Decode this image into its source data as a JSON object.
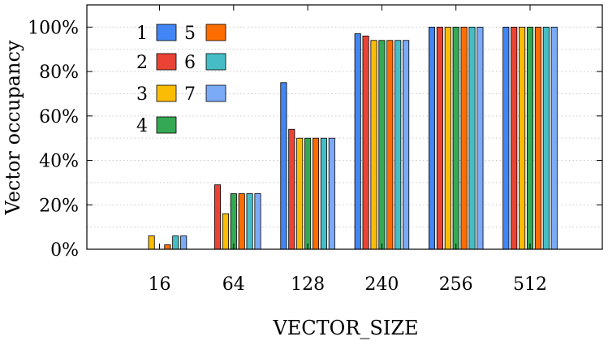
{
  "chart_data": {
    "type": "bar",
    "title": "",
    "xlabel": "VECTOR_SIZE",
    "ylabel": "Vector occupancy",
    "categories": [
      "16",
      "64",
      "128",
      "240",
      "256",
      "512"
    ],
    "ylim": [
      0,
      110
    ],
    "yticks": [
      0,
      20,
      40,
      60,
      80,
      100
    ],
    "ytick_labels": [
      "0%",
      "20%",
      "40%",
      "60%",
      "80%",
      "100%"
    ],
    "grid": "horizontal dotted",
    "legend_position": "top-left",
    "series": [
      {
        "name": "1",
        "color": "#4285f4",
        "values": [
          0,
          0,
          75,
          97,
          100,
          100
        ]
      },
      {
        "name": "2",
        "color": "#ea4335",
        "values": [
          0,
          29,
          54,
          96,
          100,
          100
        ]
      },
      {
        "name": "3",
        "color": "#fbbc04",
        "values": [
          6,
          16,
          50,
          94,
          100,
          100
        ]
      },
      {
        "name": "4",
        "color": "#34a853",
        "values": [
          0,
          25,
          50,
          94,
          100,
          100
        ]
      },
      {
        "name": "5",
        "color": "#ff6d01",
        "values": [
          2,
          25,
          50,
          94,
          100,
          100
        ]
      },
      {
        "name": "6",
        "color": "#46bdc6",
        "values": [
          6,
          25,
          50,
          94,
          100,
          100
        ]
      },
      {
        "name": "7",
        "color": "#7baaf7",
        "values": [
          6,
          25,
          50,
          94,
          100,
          100
        ]
      }
    ]
  }
}
